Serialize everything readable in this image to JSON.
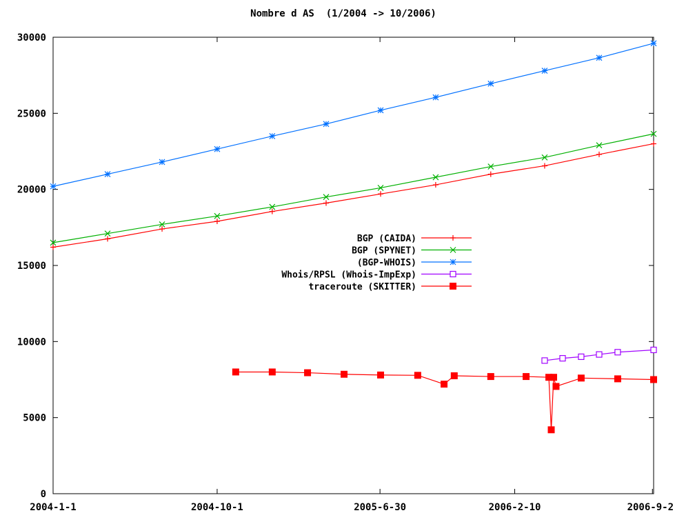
{
  "chart_data": {
    "type": "line",
    "title": "Nombre d AS  (1/2004 -> 10/2006)",
    "xlabel": "",
    "ylabel": "",
    "x_range": [
      "2004-01-01",
      "2006-09-30"
    ],
    "ylim": [
      0,
      30000
    ],
    "x_ticks": [
      "2004-1-1",
      "2004-10-1",
      "2005-6-30",
      "2006-2-10",
      "2006-9-2"
    ],
    "x_tick_dates": [
      "2004-01-01",
      "2004-10-01",
      "2005-06-30",
      "2006-02-10",
      "2006-09-28"
    ],
    "y_ticks": [
      0,
      5000,
      10000,
      15000,
      20000,
      25000,
      30000
    ],
    "grid": false,
    "legend_position": "center",
    "series": [
      {
        "name": "BGP (CAIDA)",
        "color": "#ff0000",
        "marker": "plus",
        "x": [
          "2004-01-01",
          "2004-04-01",
          "2004-07-01",
          "2004-10-01",
          "2005-01-01",
          "2005-04-01",
          "2005-07-01",
          "2005-10-01",
          "2006-01-01",
          "2006-04-01",
          "2006-07-01",
          "2006-09-30"
        ],
        "y": [
          16200,
          16750,
          17400,
          17900,
          18550,
          19100,
          19700,
          20300,
          21000,
          21550,
          22300,
          23000
        ]
      },
      {
        "name": "BGP (SPYNET)",
        "color": "#00b000",
        "marker": "cross",
        "x": [
          "2004-01-01",
          "2004-04-01",
          "2004-07-01",
          "2004-10-01",
          "2005-01-01",
          "2005-04-01",
          "2005-07-01",
          "2005-10-01",
          "2006-01-01",
          "2006-04-01",
          "2006-07-01",
          "2006-09-30"
        ],
        "y": [
          16500,
          17100,
          17700,
          18250,
          18850,
          19500,
          20100,
          20800,
          21500,
          22100,
          22900,
          23650
        ]
      },
      {
        "name": "(BGP-WHOIS)",
        "color": "#0070ff",
        "marker": "star",
        "x": [
          "2004-01-01",
          "2004-04-01",
          "2004-07-01",
          "2004-10-01",
          "2005-01-01",
          "2005-04-01",
          "2005-07-01",
          "2005-10-01",
          "2006-01-01",
          "2006-04-01",
          "2006-07-01",
          "2006-09-30"
        ],
        "y": [
          20200,
          21000,
          21800,
          22650,
          23500,
          24300,
          25200,
          26050,
          26950,
          27800,
          28650,
          29600
        ]
      },
      {
        "name": "Whois/RPSL (Whois-ImpExp)",
        "color": "#a000ff",
        "marker": "square-open",
        "x": [
          "2006-04-01",
          "2006-05-01",
          "2006-06-01",
          "2006-07-01",
          "2006-08-01",
          "2006-09-30"
        ],
        "y": [
          8750,
          8900,
          9000,
          9150,
          9300,
          9450
        ]
      },
      {
        "name": "traceroute (SKITTER)",
        "color": "#ff0000",
        "marker": "square-filled",
        "x": [
          "2004-11-01",
          "2005-01-01",
          "2005-03-01",
          "2005-05-01",
          "2005-07-01",
          "2005-09-01",
          "2005-10-15",
          "2005-11-01",
          "2006-01-01",
          "2006-03-01",
          "2006-04-08",
          "2006-04-12",
          "2006-04-16",
          "2006-04-20",
          "2006-06-01",
          "2006-08-01",
          "2006-09-30"
        ],
        "y": [
          8000,
          8000,
          7950,
          7850,
          7800,
          7780,
          7200,
          7750,
          7700,
          7700,
          7650,
          4200,
          7650,
          7050,
          7600,
          7550,
          7500
        ]
      }
    ]
  }
}
